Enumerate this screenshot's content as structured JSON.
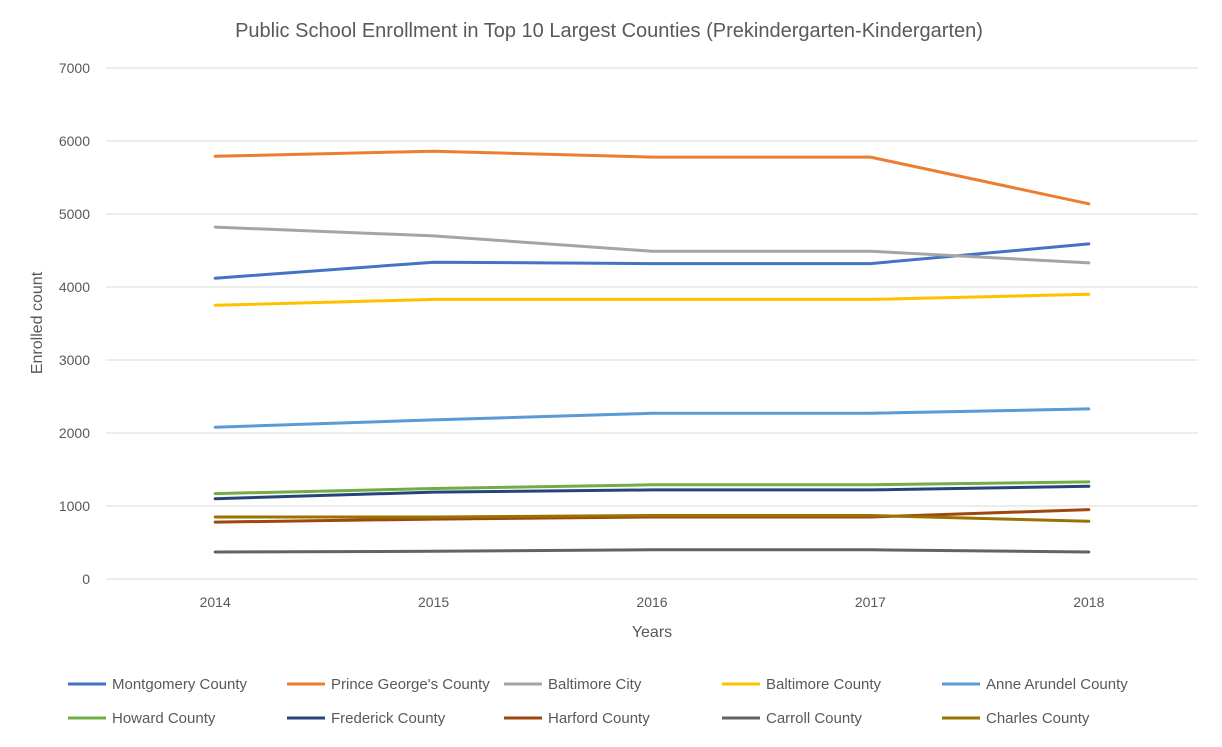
{
  "chart_data": {
    "type": "line",
    "title": "Public School Enrollment in Top 10 Largest Counties (Prekindergarten-Kindergarten)",
    "xlabel": "Years",
    "ylabel": "Enrolled count",
    "categories": [
      "2014",
      "2015",
      "2016",
      "2017",
      "2018"
    ],
    "ylim": [
      0,
      7000
    ],
    "yticks": [
      0,
      1000,
      2000,
      3000,
      4000,
      5000,
      6000,
      7000
    ],
    "grid": true,
    "legend_position": "bottom",
    "series": [
      {
        "name": "Montgomery County",
        "color": "#4472c4",
        "values": [
          4120,
          4340,
          4320,
          4320,
          4590
        ]
      },
      {
        "name": "Prince George's County",
        "color": "#ed7d31",
        "values": [
          5790,
          5860,
          5780,
          5780,
          5140
        ]
      },
      {
        "name": "Baltimore City",
        "color": "#a5a5a5",
        "values": [
          4820,
          4700,
          4490,
          4490,
          4330
        ]
      },
      {
        "name": "Baltimore County",
        "color": "#ffc000",
        "values": [
          3750,
          3830,
          3830,
          3830,
          3900
        ]
      },
      {
        "name": "Anne Arundel County",
        "color": "#5b9bd5",
        "values": [
          2080,
          2180,
          2270,
          2270,
          2330
        ]
      },
      {
        "name": "Howard County",
        "color": "#70ad47",
        "values": [
          1170,
          1240,
          1290,
          1290,
          1330
        ]
      },
      {
        "name": "Frederick County",
        "color": "#264478",
        "values": [
          1100,
          1190,
          1220,
          1220,
          1270
        ]
      },
      {
        "name": "Harford County",
        "color": "#9e480e",
        "values": [
          780,
          820,
          850,
          850,
          950
        ]
      },
      {
        "name": "Carroll County",
        "color": "#636363",
        "values": [
          370,
          380,
          400,
          400,
          370
        ]
      },
      {
        "name": "Charles County",
        "color": "#997300",
        "values": [
          850,
          850,
          870,
          870,
          790
        ]
      }
    ]
  }
}
